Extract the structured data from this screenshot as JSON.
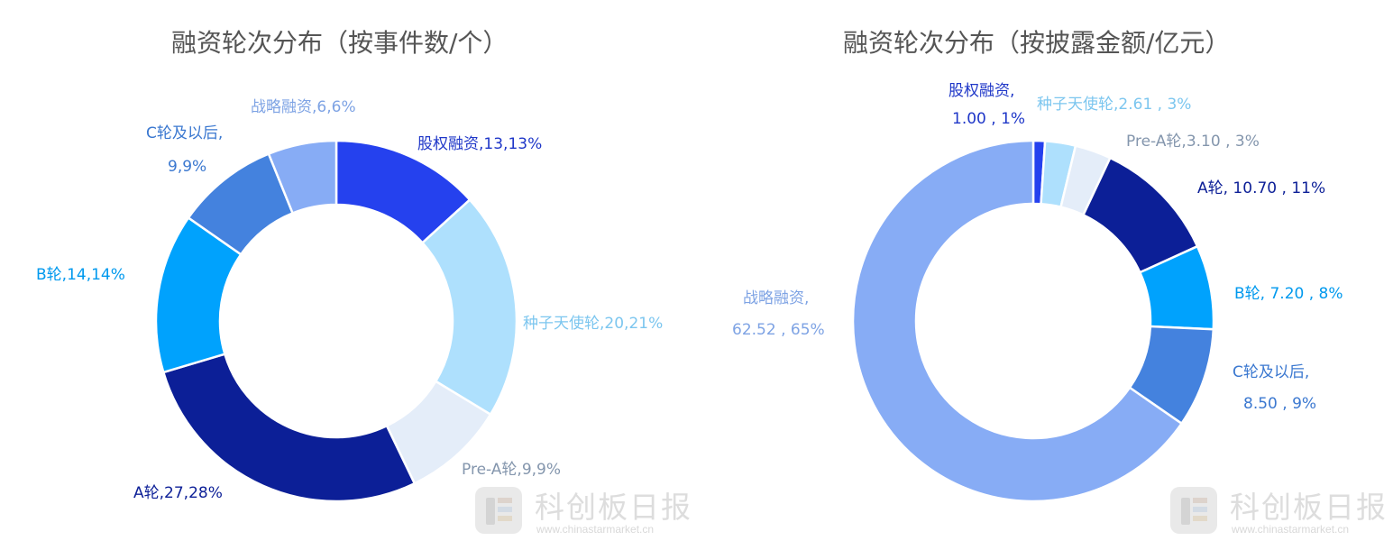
{
  "chart_data": [
    {
      "type": "pie",
      "title": "融资轮次分布（按事件数/个）",
      "slices": [
        {
          "category": "股权融资",
          "value": 13,
          "percent": "13%",
          "color": "#2541ee",
          "label_lines": [
            "股权融资,13,13%"
          ]
        },
        {
          "category": "种子天使轮",
          "value": 20,
          "percent": "21%",
          "color": "#aee0fd",
          "label_lines": [
            "种子天使轮,20,21%"
          ]
        },
        {
          "category": "Pre-A轮",
          "value": 9,
          "percent": "9%",
          "color": "#e4edf9",
          "label_lines": [
            "Pre-A轮,9,9%"
          ]
        },
        {
          "category": "A轮",
          "value": 27,
          "percent": "28%",
          "color": "#0c1f97",
          "label_lines": [
            "A轮,27,28%"
          ]
        },
        {
          "category": "B轮",
          "value": 14,
          "percent": "14%",
          "color": "#00a2fd",
          "label_lines": [
            "B轮,14,14%"
          ]
        },
        {
          "category": "C轮及以后",
          "value": 9,
          "percent": "9%",
          "color": "#4482de",
          "label_lines": [
            "C轮及以后,",
            "9,9%"
          ]
        },
        {
          "category": "战略融资",
          "value": 6,
          "percent": "6%",
          "color": "#87acf5",
          "label_lines": [
            "战略融资,6,6%"
          ]
        }
      ],
      "label_colors": [
        "#1f37c8",
        "#7cc6ef",
        "#8496ad",
        "#0c1f97",
        "#0099ee",
        "#3b78d0",
        "#7ea3e4"
      ],
      "donut_style": "ring"
    },
    {
      "type": "pie",
      "title": "融资轮次分布（按披露金额/亿元）",
      "slices": [
        {
          "category": "股权融资",
          "value": 1.0,
          "percent": "1%",
          "color": "#2541ee",
          "label_lines": [
            "股权融资,",
            "1.00 , 1%"
          ]
        },
        {
          "category": "种子天使轮",
          "value": 2.61,
          "percent": "3%",
          "color": "#aee0fd",
          "label_lines": [
            "种子天使轮,2.61 , 3%"
          ]
        },
        {
          "category": "Pre-A轮",
          "value": 3.1,
          "percent": "3%",
          "color": "#e4edf9",
          "label_lines": [
            "Pre-A轮,3.10 , 3%"
          ]
        },
        {
          "category": "A轮",
          "value": 10.7,
          "percent": "11%",
          "color": "#0c1f97",
          "label_lines": [
            "A轮, 10.70 , 11%"
          ]
        },
        {
          "category": "B轮",
          "value": 7.2,
          "percent": "8%",
          "color": "#00a2fd",
          "label_lines": [
            "B轮, 7.20 , 8%"
          ]
        },
        {
          "category": "C轮及以后",
          "value": 8.5,
          "percent": "9%",
          "color": "#4482de",
          "label_lines": [
            "C轮及以后,",
            "8.50 , 9%"
          ]
        },
        {
          "category": "战略融资",
          "value": 62.52,
          "percent": "65%",
          "color": "#87acf5",
          "label_lines": [
            "战略融资,",
            "62.52 , 65%"
          ]
        }
      ],
      "label_colors": [
        "#1f37c8",
        "#7cc6ef",
        "#8496ad",
        "#0c1f97",
        "#0099ee",
        "#3b78d0",
        "#7ea3e4"
      ],
      "donut_style": "ring"
    }
  ],
  "watermark": {
    "brand": "科创板日报",
    "url": "www.chinastarmarket.cn"
  }
}
